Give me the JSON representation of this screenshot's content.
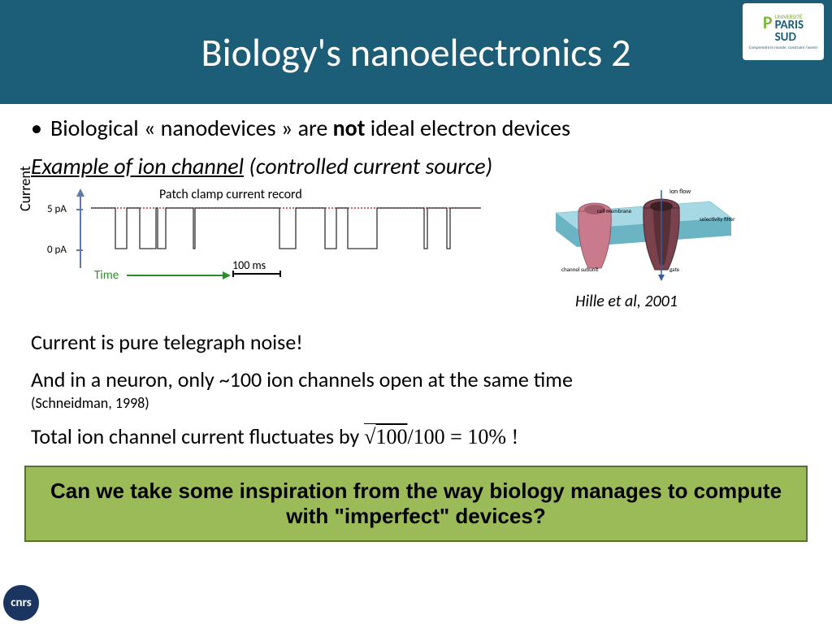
{
  "header": {
    "title": "Biology's nanoelectronics 2",
    "bg_color": "#1c5e77",
    "title_color": "#ffffff",
    "title_fontsize": 48,
    "logo": {
      "mark": "P",
      "line1": "UNIVERSITÉ",
      "line2": "PARIS",
      "line3": "SUD",
      "tagline": "Comprendre le monde, construire l'avenir"
    }
  },
  "bullet1_pre": "Biological « nanodevices » are ",
  "bullet1_bold": "not",
  "bullet1_post": " ideal electron devices",
  "example_label_underlined": "Example of ion channel",
  "example_label_rest": " (controlled current source)",
  "chart": {
    "title": "Patch clamp current record",
    "ylabel": "Current",
    "y_ticks": [
      "5 pA",
      "0 pA"
    ],
    "xlabel": "Time",
    "scalebar": "100 ms",
    "yaxis_color": "#5b7ca8",
    "xaxis_color": "#2e8b2e",
    "signal": {
      "high_y": 8,
      "low_y": 58,
      "dotted_color": "#c03030",
      "line_color": "#333333",
      "pulses": [
        {
          "start": 30,
          "end": 44
        },
        {
          "start": 60,
          "end": 80
        },
        {
          "start": 82,
          "end": 92
        },
        {
          "start": 126,
          "end": 128
        },
        {
          "start": 232,
          "end": 252
        },
        {
          "start": 288,
          "end": 302
        },
        {
          "start": 316,
          "end": 352
        },
        {
          "start": 410,
          "end": 414
        },
        {
          "start": 438,
          "end": 442
        }
      ]
    }
  },
  "diagram": {
    "membrane_top": "#a7d9e5",
    "membrane_side": "#6bb4c4",
    "channel1_fill": "#c97b8b",
    "channel1_stroke": "#8a4a5a",
    "channel2_fill": "#7a424d",
    "channel2_stroke": "#4a2830",
    "arrow_color": "#3a5a9a",
    "label_ionflow": "ion flow",
    "label_cell": "cell membrane",
    "label_selectivity": "selectivity filter",
    "label_subunit": "channel subunit",
    "label_gate": "gate",
    "citation": "Hille et al, 2001"
  },
  "line_noise": "Current is pure telegraph noise!",
  "line_neuron": "And in a neuron, only ~100 ion channels open at the same time",
  "line_neuron_ref": "(Schneidman, 1998)",
  "line_fluct_pre": "Total ion channel current fluctuates by  ",
  "line_fluct_math": "√100/100 = 10% !",
  "callout": "Can we take some inspiration from the way biology manages to compute with \"imperfect\" devices?",
  "callout_bg": "#9bbb59",
  "callout_border": "#5a7031",
  "cnrs": "cnrs"
}
